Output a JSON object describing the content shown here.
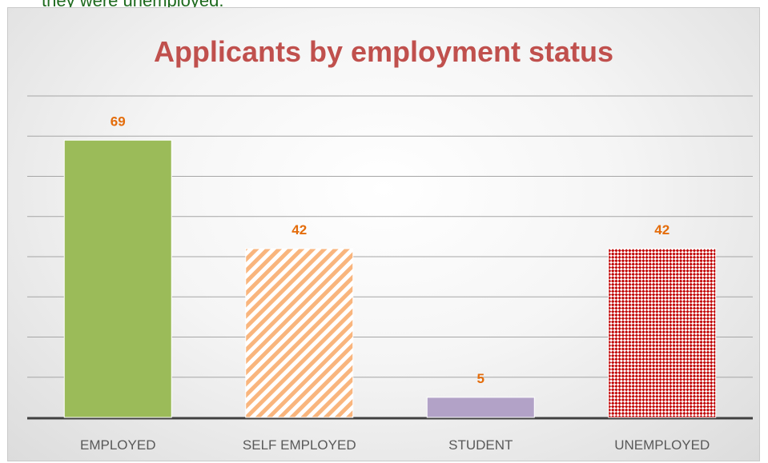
{
  "top_text": "they were unemployed.",
  "chart_data": {
    "type": "bar",
    "title": "Applicants by employment status",
    "categories": [
      "EMPLOYED",
      "SELF EMPLOYED",
      "STUDENT",
      "UNEMPLOYED"
    ],
    "values": [
      69,
      42,
      5,
      42
    ],
    "data_labels": [
      "69",
      "42",
      "5",
      "42"
    ],
    "ylim": [
      0,
      80
    ],
    "grid": true,
    "legend": "none",
    "xlabel": "",
    "ylabel": "",
    "colors": {
      "EMPLOYED": "#9bbb59",
      "SELF EMPLOYED": "#f79646",
      "STUDENT": "#b2a2c7",
      "UNEMPLOYED": "#c0504d",
      "title": "#c0504d",
      "data_label": "#e46c0a",
      "gridline": "#a6a6a6",
      "axis": "#404040"
    },
    "fills": [
      "solid",
      "diagonal-stripes",
      "solid",
      "checker"
    ]
  }
}
